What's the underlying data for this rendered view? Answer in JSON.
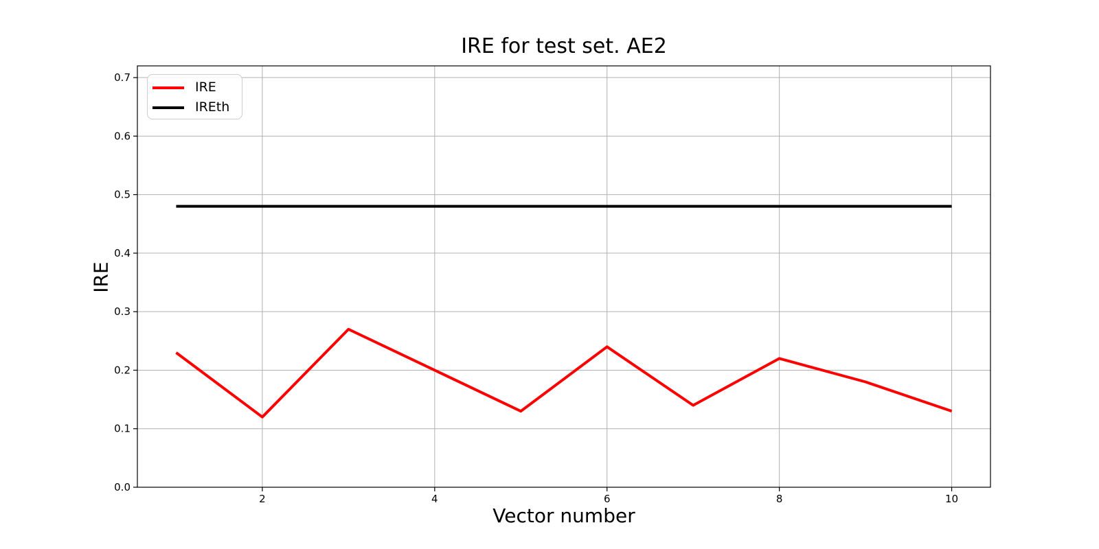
{
  "figure": {
    "background": "#ffffff"
  },
  "chart_data": {
    "type": "line",
    "title": "IRE for test set. AE2",
    "xlabel": "Vector number",
    "ylabel": "IRE",
    "x": [
      1,
      2,
      3,
      4,
      5,
      6,
      7,
      8,
      9,
      10
    ],
    "series": [
      {
        "name": "IRE",
        "color": "#ff0000",
        "values": [
          0.23,
          0.12,
          0.27,
          0.2,
          0.13,
          0.24,
          0.14,
          0.22,
          0.18,
          0.13
        ]
      },
      {
        "name": "IREth",
        "color": "#000000",
        "values": [
          0.48,
          0.48,
          0.48,
          0.48,
          0.48,
          0.48,
          0.48,
          0.48,
          0.48,
          0.48
        ]
      }
    ],
    "xlim": [
      0.55,
      10.45
    ],
    "ylim": [
      0,
      0.72
    ],
    "xticks": {
      "values": [
        2,
        4,
        6,
        8,
        10
      ],
      "labels": [
        "2",
        "4",
        "6",
        "8",
        "10"
      ]
    },
    "yticks": {
      "values": [
        0.0,
        0.1,
        0.2,
        0.3,
        0.4,
        0.5,
        0.6,
        0.7
      ],
      "labels": [
        "0.0",
        "0.1",
        "0.2",
        "0.3",
        "0.4",
        "0.5",
        "0.6",
        "0.7"
      ]
    },
    "grid": true,
    "grid_color": "#b0b0b0",
    "axes_color": "#000000",
    "legend": {
      "position": "upper left",
      "entries": [
        "IRE",
        "IREth"
      ]
    }
  }
}
